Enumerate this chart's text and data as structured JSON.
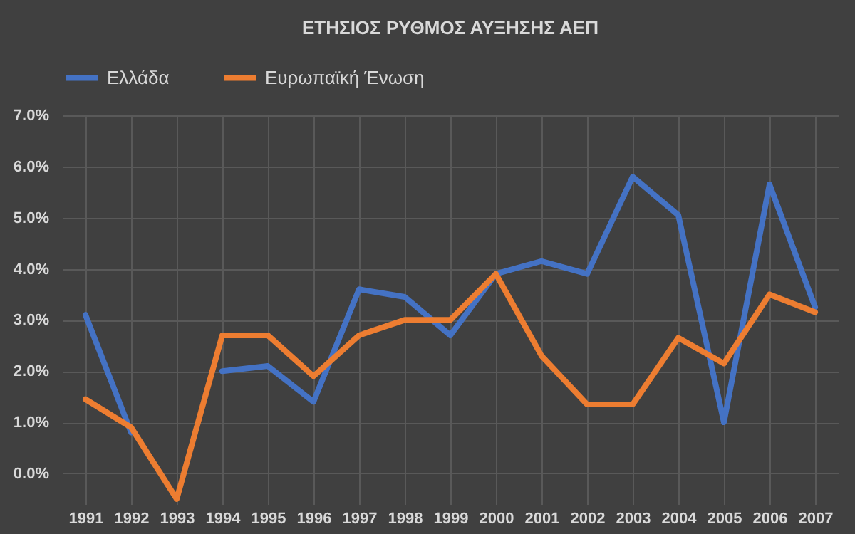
{
  "chart_data": {
    "type": "line",
    "title": "ΕΤΗΣΙΟΣ ΡΥΘΜΟΣ ΑΥΞΗΣΗΣ ΑΕΠ",
    "categories": [
      "1991",
      "1992",
      "1993",
      "1994",
      "1995",
      "1996",
      "1997",
      "1998",
      "1999",
      "2000",
      "2001",
      "2002",
      "2003",
      "2004",
      "2005",
      "2006",
      "2007"
    ],
    "series": [
      {
        "name": "Ελλάδα",
        "color": "#4472c4",
        "values": [
          3.1,
          0.8,
          null,
          2.0,
          2.1,
          1.4,
          3.6,
          3.45,
          2.7,
          3.9,
          4.15,
          3.9,
          5.8,
          5.05,
          1.0,
          5.65,
          3.25
        ]
      },
      {
        "name": "Ευρωπαϊκή Ένωση",
        "color": "#ed7d31",
        "values": [
          1.45,
          0.9,
          -0.5,
          2.7,
          2.7,
          1.9,
          2.7,
          3.0,
          3.0,
          3.9,
          2.3,
          1.35,
          1.35,
          2.65,
          2.15,
          3.5,
          3.15
        ]
      }
    ],
    "ylim": [
      -0.6,
      7
    ],
    "yticks": [
      {
        "value": 0,
        "label": "0.0%"
      },
      {
        "value": 1,
        "label": "1.0%"
      },
      {
        "value": 2,
        "label": "2.0%"
      },
      {
        "value": 3,
        "label": "3.0%"
      },
      {
        "value": 4,
        "label": "4.0%"
      },
      {
        "value": 5,
        "label": "5.0%"
      },
      {
        "value": 6,
        "label": "6.0%"
      },
      {
        "value": 7,
        "label": "7.0%"
      }
    ],
    "grid": true,
    "legend": "top",
    "marker": "none",
    "line_style": "solid"
  }
}
